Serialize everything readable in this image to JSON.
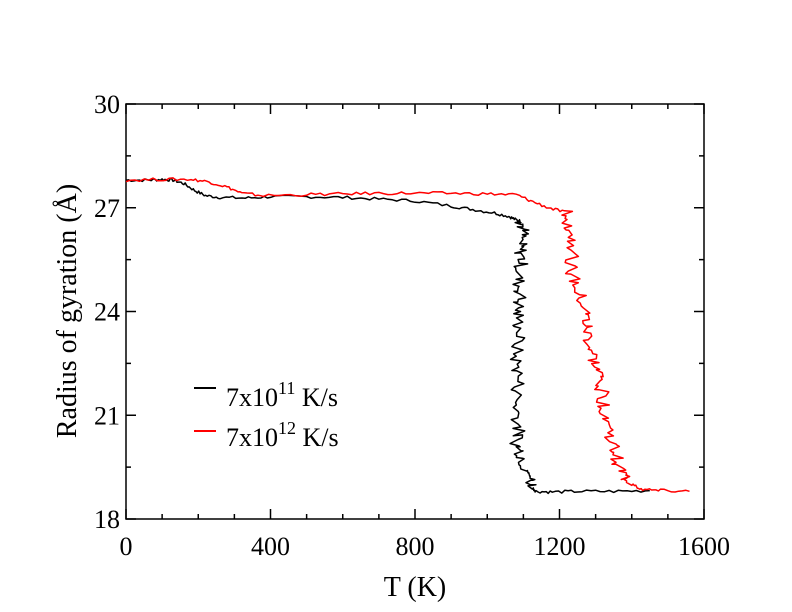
{
  "chart_data": {
    "type": "line",
    "title": "",
    "xlabel": "T (K)",
    "ylabel": "Radius of gyration (Å)",
    "xlim": [
      0,
      1600
    ],
    "ylim": [
      18,
      30
    ],
    "xticks": [
      0,
      400,
      800,
      1200,
      1600
    ],
    "yticks": [
      18,
      21,
      24,
      27,
      30
    ],
    "xtick_labels": [
      "0",
      "400",
      "800",
      "1200",
      "1600"
    ],
    "ytick_labels": [
      "18",
      "21",
      "24",
      "27",
      "30"
    ],
    "grid": false,
    "legend_position": "lower-left",
    "series": [
      {
        "name": "7x10^11 K/s",
        "legend_base": "7x10",
        "legend_exp": "11",
        "legend_unit": " K/s",
        "color": "#000000",
        "points": [
          [
            0,
            27.8
          ],
          [
            60,
            27.8
          ],
          [
            100,
            27.82
          ],
          [
            130,
            27.8
          ],
          [
            160,
            27.7
          ],
          [
            190,
            27.5
          ],
          [
            220,
            27.35
          ],
          [
            260,
            27.3
          ],
          [
            330,
            27.28
          ],
          [
            400,
            27.32
          ],
          [
            500,
            27.32
          ],
          [
            600,
            27.3
          ],
          [
            700,
            27.25
          ],
          [
            800,
            27.2
          ],
          [
            900,
            27.05
          ],
          [
            960,
            26.95
          ],
          [
            1020,
            26.85
          ],
          [
            1060,
            26.75
          ],
          [
            1080,
            26.65
          ],
          [
            1095,
            26.6
          ],
          [
            1100,
            26.3
          ],
          [
            1090,
            25.9
          ],
          [
            1097,
            25.5
          ],
          [
            1085,
            25.0
          ],
          [
            1092,
            24.5
          ],
          [
            1083,
            24.0
          ],
          [
            1090,
            23.4
          ],
          [
            1078,
            22.7
          ],
          [
            1088,
            22.1
          ],
          [
            1080,
            21.4
          ],
          [
            1088,
            20.7
          ],
          [
            1082,
            20.2
          ],
          [
            1098,
            19.8
          ],
          [
            1110,
            19.4
          ],
          [
            1120,
            19.2
          ],
          [
            1125,
            18.9
          ],
          [
            1135,
            18.8
          ],
          [
            1180,
            18.78
          ],
          [
            1250,
            18.8
          ],
          [
            1350,
            18.8
          ],
          [
            1450,
            18.82
          ]
        ]
      },
      {
        "name": "7x10^12 K/s",
        "legend_base": "7x10",
        "legend_exp": "12",
        "legend_unit": " K/s",
        "color": "#ff0000",
        "points": [
          [
            0,
            27.8
          ],
          [
            100,
            27.82
          ],
          [
            180,
            27.82
          ],
          [
            230,
            27.75
          ],
          [
            280,
            27.6
          ],
          [
            320,
            27.42
          ],
          [
            380,
            27.35
          ],
          [
            500,
            27.38
          ],
          [
            600,
            27.4
          ],
          [
            700,
            27.42
          ],
          [
            800,
            27.42
          ],
          [
            900,
            27.42
          ],
          [
            1000,
            27.4
          ],
          [
            1080,
            27.38
          ],
          [
            1120,
            27.2
          ],
          [
            1170,
            27.0
          ],
          [
            1220,
            26.85
          ],
          [
            1230,
            26.4
          ],
          [
            1240,
            25.8
          ],
          [
            1230,
            25.2
          ],
          [
            1250,
            24.6
          ],
          [
            1270,
            24.0
          ],
          [
            1275,
            23.5
          ],
          [
            1285,
            22.9
          ],
          [
            1300,
            22.4
          ],
          [
            1315,
            21.9
          ],
          [
            1320,
            21.4
          ],
          [
            1335,
            20.8
          ],
          [
            1345,
            20.2
          ],
          [
            1360,
            19.7
          ],
          [
            1375,
            19.3
          ],
          [
            1400,
            19.0
          ],
          [
            1430,
            18.85
          ],
          [
            1480,
            18.82
          ],
          [
            1560,
            18.8
          ]
        ]
      }
    ]
  }
}
